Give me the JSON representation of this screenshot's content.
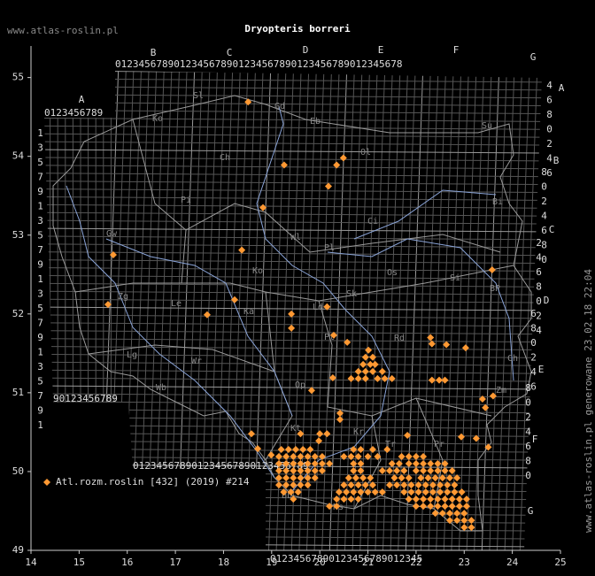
{
  "header": {
    "site": "www.atlas-roslin.pl",
    "title": "Dryopteris borreri"
  },
  "footer": "www.atlas-roslin.pl generowane 23.02.18 22:04",
  "legend": {
    "label": "Atl.rozm.roslin [432] (2019) #214",
    "color": "#ff9933"
  },
  "map": {
    "type": "scatter",
    "xlim": [
      14,
      25
    ],
    "ylim": [
      49,
      55.4
    ],
    "xticks": [
      14,
      15,
      16,
      17,
      18,
      19,
      20,
      21,
      22,
      23,
      24,
      25
    ],
    "yticks": [
      49,
      50,
      51,
      52,
      53,
      54,
      55
    ],
    "grid_letters": [
      "A",
      "B",
      "C",
      "D",
      "E",
      "F",
      "G"
    ],
    "digit_rows": [
      "0123456789",
      "0123456789012345678901234567890123456789012345678",
      "90123456789",
      "012345678901234567890123456789",
      "01234567890123456789012345"
    ],
    "digit_columns": [
      "135791357913579135791",
      "4680246",
      "8024680",
      "2468024",
      "680246",
      "8024680"
    ],
    "regions": [
      "Sl",
      "Gd",
      "Eb",
      "Ol",
      "Su",
      "Ko",
      "Ch",
      "Pi",
      "Ci",
      "Bi",
      "Gw",
      "Wl",
      "Pl",
      "Ko",
      "Os",
      "Si",
      "BP",
      "Zg",
      "Le",
      "Ka",
      "Sk",
      "Ld",
      "Pt",
      "Rd",
      "Ch",
      "Lg",
      "Wr",
      "Wb",
      "Op",
      "Kt",
      "Kr",
      "Tr",
      "Pr",
      "Zm",
      "Ns",
      "Bb"
    ],
    "points": [
      [
        18.51,
        54.69
      ],
      [
        19.26,
        53.89
      ],
      [
        20.35,
        53.89
      ],
      [
        20.49,
        53.98
      ],
      [
        20.18,
        53.62
      ],
      [
        18.82,
        53.35
      ],
      [
        18.38,
        52.81
      ],
      [
        15.71,
        52.75
      ],
      [
        23.58,
        52.56
      ],
      [
        15.6,
        52.12
      ],
      [
        17.66,
        51.99
      ],
      [
        18.23,
        52.18
      ],
      [
        19.41,
        52.0
      ],
      [
        19.41,
        51.82
      ],
      [
        20.15,
        52.09
      ],
      [
        20.29,
        51.73
      ],
      [
        20.57,
        51.64
      ],
      [
        21.01,
        51.54
      ],
      [
        22.3,
        51.7
      ],
      [
        22.33,
        51.62
      ],
      [
        22.63,
        51.61
      ],
      [
        23.03,
        51.57
      ],
      [
        20.27,
        51.19
      ],
      [
        19.83,
        51.03
      ],
      [
        20.42,
        50.74
      ],
      [
        20.42,
        50.66
      ],
      [
        23.38,
        50.92
      ],
      [
        23.6,
        50.96
      ],
      [
        23.44,
        50.81
      ],
      [
        18.58,
        50.48
      ],
      [
        18.71,
        50.29
      ],
      [
        18.99,
        50.21
      ],
      [
        21.82,
        50.46
      ],
      [
        22.94,
        50.44
      ],
      [
        23.25,
        50.42
      ],
      [
        23.5,
        50.31
      ],
      [
        22.33,
        51.16
      ],
      [
        22.48,
        51.16
      ],
      [
        22.6,
        51.16
      ],
      [
        19.6,
        50.48
      ],
      [
        20.0,
        50.48
      ],
      [
        20.15,
        50.48
      ],
      [
        19.98,
        50.39
      ],
      [
        20.95,
        51.45
      ],
      [
        21.1,
        51.45
      ],
      [
        20.9,
        51.36
      ],
      [
        21.05,
        51.36
      ],
      [
        21.15,
        51.36
      ],
      [
        20.8,
        51.27
      ],
      [
        20.95,
        51.27
      ],
      [
        21.1,
        51.27
      ],
      [
        21.3,
        51.27
      ],
      [
        20.65,
        51.18
      ],
      [
        20.8,
        51.18
      ],
      [
        20.95,
        51.18
      ],
      [
        21.2,
        51.18
      ],
      [
        21.35,
        51.18
      ],
      [
        21.5,
        51.18
      ],
      [
        19.2,
        50.28
      ],
      [
        19.35,
        50.28
      ],
      [
        19.5,
        50.28
      ],
      [
        19.65,
        50.28
      ],
      [
        19.8,
        50.28
      ],
      [
        20.7,
        50.28
      ],
      [
        20.85,
        50.28
      ],
      [
        21.1,
        50.28
      ],
      [
        21.4,
        50.28
      ],
      [
        19.15,
        50.19
      ],
      [
        19.3,
        50.19
      ],
      [
        19.45,
        50.19
      ],
      [
        19.6,
        50.19
      ],
      [
        19.75,
        50.19
      ],
      [
        19.9,
        50.19
      ],
      [
        20.05,
        50.19
      ],
      [
        20.5,
        50.19
      ],
      [
        20.65,
        50.19
      ],
      [
        20.8,
        50.19
      ],
      [
        21.0,
        50.19
      ],
      [
        21.2,
        50.19
      ],
      [
        21.7,
        50.19
      ],
      [
        21.85,
        50.19
      ],
      [
        22.0,
        50.19
      ],
      [
        22.15,
        50.19
      ],
      [
        19.15,
        50.1
      ],
      [
        19.3,
        50.1
      ],
      [
        19.45,
        50.1
      ],
      [
        19.6,
        50.1
      ],
      [
        19.75,
        50.1
      ],
      [
        19.9,
        50.1
      ],
      [
        20.05,
        50.1
      ],
      [
        20.2,
        50.1
      ],
      [
        20.7,
        50.1
      ],
      [
        20.85,
        50.1
      ],
      [
        21.5,
        50.1
      ],
      [
        21.65,
        50.1
      ],
      [
        21.85,
        50.1
      ],
      [
        22.0,
        50.1
      ],
      [
        22.15,
        50.1
      ],
      [
        22.3,
        50.1
      ],
      [
        22.45,
        50.1
      ],
      [
        22.6,
        50.1
      ],
      [
        19.15,
        50.01
      ],
      [
        19.3,
        50.01
      ],
      [
        19.45,
        50.01
      ],
      [
        19.6,
        50.01
      ],
      [
        19.75,
        50.01
      ],
      [
        19.9,
        50.01
      ],
      [
        20.05,
        50.01
      ],
      [
        20.7,
        50.01
      ],
      [
        20.85,
        50.01
      ],
      [
        21.3,
        50.01
      ],
      [
        21.45,
        50.01
      ],
      [
        21.6,
        50.01
      ],
      [
        21.75,
        50.01
      ],
      [
        22.0,
        50.01
      ],
      [
        22.15,
        50.01
      ],
      [
        22.3,
        50.01
      ],
      [
        22.45,
        50.01
      ],
      [
        22.6,
        50.01
      ],
      [
        22.75,
        50.01
      ],
      [
        19.15,
        49.92
      ],
      [
        19.3,
        49.92
      ],
      [
        19.45,
        49.92
      ],
      [
        19.6,
        49.92
      ],
      [
        19.75,
        49.92
      ],
      [
        19.9,
        49.92
      ],
      [
        20.6,
        49.92
      ],
      [
        20.75,
        49.92
      ],
      [
        20.9,
        49.92
      ],
      [
        21.05,
        49.92
      ],
      [
        21.55,
        49.92
      ],
      [
        21.7,
        49.92
      ],
      [
        21.85,
        49.92
      ],
      [
        22.1,
        49.92
      ],
      [
        22.25,
        49.92
      ],
      [
        22.4,
        49.92
      ],
      [
        22.55,
        49.92
      ],
      [
        22.7,
        49.92
      ],
      [
        22.85,
        49.92
      ],
      [
        19.15,
        49.83
      ],
      [
        19.3,
        49.83
      ],
      [
        19.45,
        49.83
      ],
      [
        19.6,
        49.83
      ],
      [
        19.75,
        49.83
      ],
      [
        20.5,
        49.83
      ],
      [
        20.65,
        49.83
      ],
      [
        20.8,
        49.83
      ],
      [
        20.95,
        49.83
      ],
      [
        21.1,
        49.83
      ],
      [
        21.45,
        49.83
      ],
      [
        21.6,
        49.83
      ],
      [
        21.75,
        49.83
      ],
      [
        21.9,
        49.83
      ],
      [
        22.05,
        49.83
      ],
      [
        22.2,
        49.83
      ],
      [
        22.35,
        49.83
      ],
      [
        22.5,
        49.83
      ],
      [
        22.65,
        49.83
      ],
      [
        22.8,
        49.83
      ],
      [
        19.25,
        49.74
      ],
      [
        19.4,
        49.74
      ],
      [
        19.55,
        49.74
      ],
      [
        20.4,
        49.74
      ],
      [
        20.55,
        49.74
      ],
      [
        20.7,
        49.74
      ],
      [
        20.85,
        49.74
      ],
      [
        21.0,
        49.74
      ],
      [
        21.15,
        49.74
      ],
      [
        21.3,
        49.74
      ],
      [
        21.75,
        49.74
      ],
      [
        21.9,
        49.74
      ],
      [
        22.05,
        49.74
      ],
      [
        22.2,
        49.74
      ],
      [
        22.35,
        49.74
      ],
      [
        22.5,
        49.74
      ],
      [
        22.65,
        49.74
      ],
      [
        22.8,
        49.74
      ],
      [
        22.95,
        49.74
      ],
      [
        19.45,
        49.65
      ],
      [
        20.35,
        49.65
      ],
      [
        20.5,
        49.65
      ],
      [
        20.65,
        49.65
      ],
      [
        20.8,
        49.65
      ],
      [
        21.85,
        49.65
      ],
      [
        22.0,
        49.65
      ],
      [
        22.15,
        49.65
      ],
      [
        22.3,
        49.65
      ],
      [
        22.45,
        49.65
      ],
      [
        22.6,
        49.65
      ],
      [
        22.75,
        49.65
      ],
      [
        22.9,
        49.65
      ],
      [
        23.05,
        49.65
      ],
      [
        20.2,
        49.56
      ],
      [
        20.35,
        49.56
      ],
      [
        22.0,
        49.56
      ],
      [
        22.15,
        49.56
      ],
      [
        22.3,
        49.56
      ],
      [
        22.45,
        49.56
      ],
      [
        22.6,
        49.56
      ],
      [
        22.75,
        49.56
      ],
      [
        22.9,
        49.56
      ],
      [
        23.05,
        49.56
      ],
      [
        22.4,
        49.47
      ],
      [
        22.55,
        49.47
      ],
      [
        22.7,
        49.47
      ],
      [
        22.85,
        49.47
      ],
      [
        23.0,
        49.47
      ],
      [
        22.7,
        49.38
      ],
      [
        22.85,
        49.38
      ],
      [
        23.0,
        49.38
      ],
      [
        23.15,
        49.38
      ],
      [
        23.0,
        49.29
      ],
      [
        23.15,
        49.29
      ]
    ]
  }
}
